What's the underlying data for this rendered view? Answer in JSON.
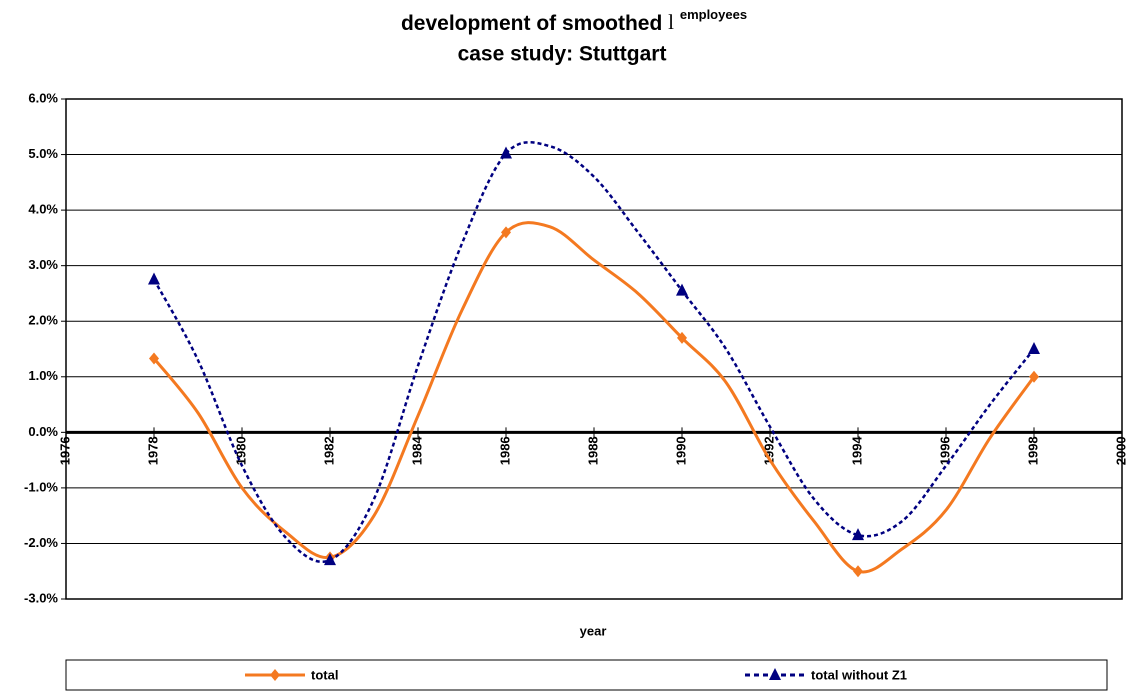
{
  "chart_data": {
    "type": "line",
    "title": "development of smoothed",
    "title_symbol": "l",
    "title_superscript": "employees",
    "subtitle": "case study: Stuttgart",
    "xlabel": "year",
    "x": [
      1978,
      1979,
      1980,
      1981,
      1982,
      1983,
      1984,
      1985,
      1986,
      1987,
      1988,
      1989,
      1990,
      1991,
      1992,
      1993,
      1994,
      1995,
      1996,
      1997,
      1998
    ],
    "series": [
      {
        "name": "total",
        "color": "#f47920",
        "marker": "diamond",
        "values": [
          1.33,
          0.35,
          -1.0,
          -1.8,
          -2.25,
          -1.5,
          0.3,
          2.2,
          3.6,
          3.7,
          3.1,
          2.5,
          1.7,
          0.9,
          -0.5,
          -1.6,
          -2.5,
          -2.1,
          -1.4,
          -0.1,
          1.0
        ]
      },
      {
        "name": "total without Z1",
        "color": "#000080",
        "marker": "triangle",
        "dashed": true,
        "values": [
          2.75,
          1.3,
          -0.6,
          -1.9,
          -2.3,
          -1.2,
          1.2,
          3.4,
          5.02,
          5.15,
          4.6,
          3.6,
          2.55,
          1.5,
          0.1,
          -1.2,
          -1.85,
          -1.6,
          -0.6,
          0.5,
          1.5
        ]
      }
    ],
    "xlim": [
      1976,
      2000
    ],
    "xticks": [
      1976,
      1978,
      1980,
      1982,
      1984,
      1986,
      1988,
      1990,
      1992,
      1994,
      1996,
      1998,
      2000
    ],
    "ylim": [
      -3,
      6
    ],
    "yticks": [
      {
        "value": -3,
        "label": "-3.0%"
      },
      {
        "value": -2,
        "label": "-2.0%"
      },
      {
        "value": -1,
        "label": "-1.0%"
      },
      {
        "value": 0,
        "label": "0.0%"
      },
      {
        "value": 1,
        "label": "1.0%"
      },
      {
        "value": 2,
        "label": "2.0%"
      },
      {
        "value": 3,
        "label": "3.0%"
      },
      {
        "value": 4,
        "label": "4.0%"
      },
      {
        "value": 5,
        "label": "5.0%"
      },
      {
        "value": 6,
        "label": "6.0%"
      }
    ],
    "grid": true,
    "legend": "bottom"
  }
}
